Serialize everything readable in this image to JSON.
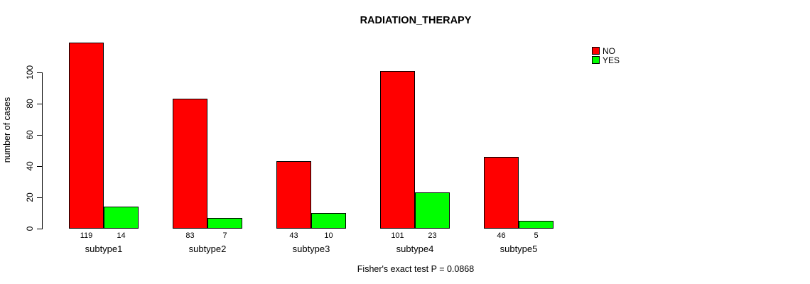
{
  "chart_data": {
    "type": "bar",
    "title": "RADIATION_THERAPY",
    "ylabel": "number of cases",
    "xlabel": "",
    "categories": [
      "subtype1",
      "subtype2",
      "subtype3",
      "subtype4",
      "subtype5"
    ],
    "series": [
      {
        "name": "NO",
        "color": "#ff0000",
        "values": [
          119,
          83,
          43,
          101,
          46
        ]
      },
      {
        "name": "YES",
        "color": "#00ff00",
        "values": [
          14,
          7,
          10,
          23,
          5
        ]
      }
    ],
    "yticks": [
      0,
      20,
      40,
      60,
      80,
      100
    ],
    "ylim": [
      0,
      125
    ],
    "grid": false,
    "legend_position": "topright",
    "bar_value_labels_shown": true,
    "bar_border_color": "#000000",
    "annotation": "Fisher's exact test P = 0.0868"
  }
}
